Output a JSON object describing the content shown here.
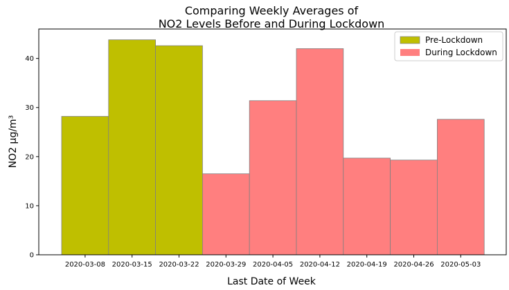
{
  "chart_data": {
    "type": "bar",
    "title_line1": "Comparing Weekly Averages of",
    "title_line2": "NO2 Levels Before and During Lockdown",
    "xlabel": "Last Date of Week",
    "ylabel": "NO2 µg/m³",
    "ylim": [
      0,
      46
    ],
    "yticks": [
      0,
      10,
      20,
      30,
      40
    ],
    "legend_position": "top-right",
    "series": [
      {
        "name": "Pre-Lockdown",
        "color": "#bfbf00",
        "categories": [
          "2020-03-08",
          "2020-03-15",
          "2020-03-22"
        ],
        "values": [
          28.2,
          43.8,
          42.6
        ]
      },
      {
        "name": "During Lockdown",
        "color": "#ff7f7f",
        "categories": [
          "2020-03-29",
          "2020-04-05",
          "2020-04-12",
          "2020-04-19",
          "2020-04-26",
          "2020-05-03"
        ],
        "values": [
          16.5,
          31.4,
          42.0,
          19.7,
          19.3,
          27.6
        ]
      }
    ]
  }
}
